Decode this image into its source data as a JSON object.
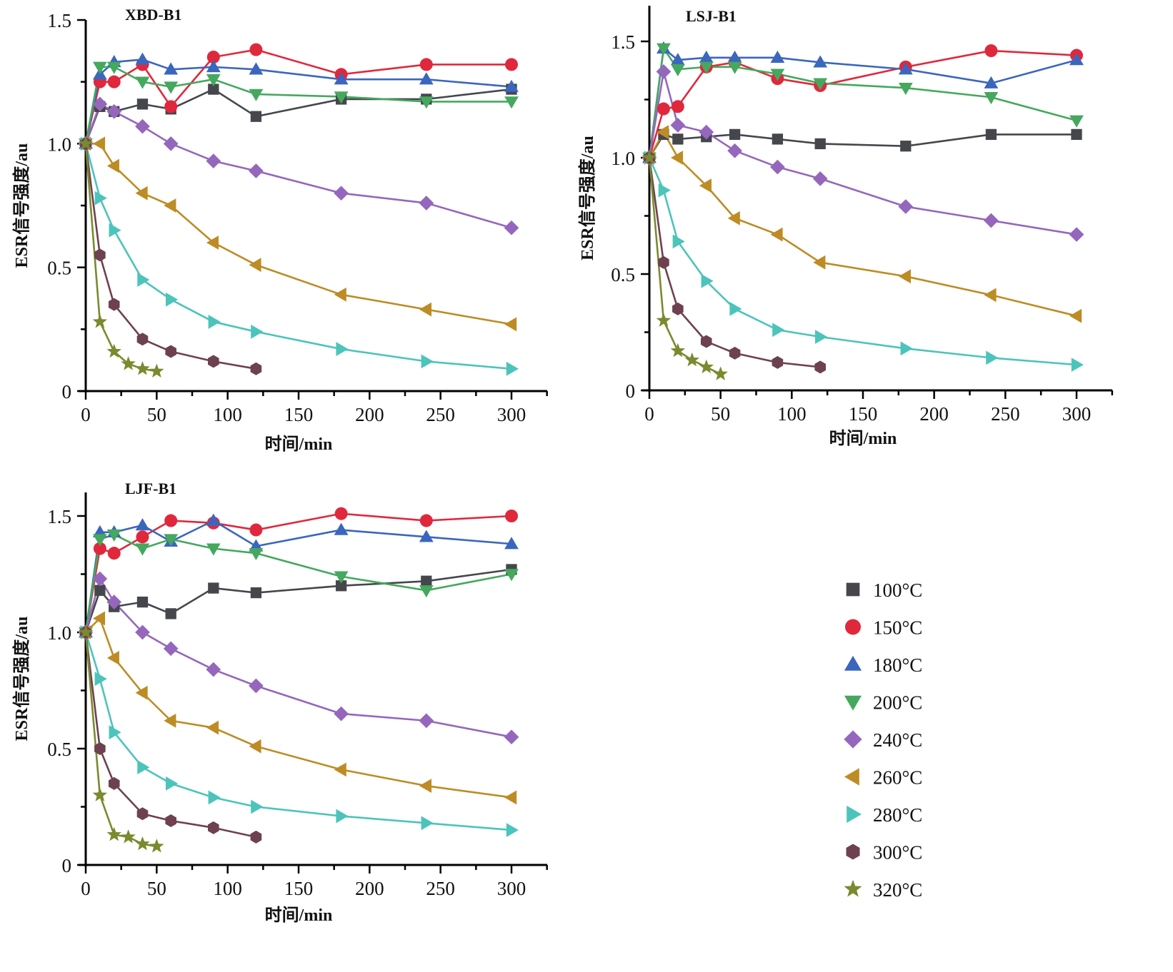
{
  "chart_data": [
    {
      "type": "line",
      "title": "XBD-B1",
      "xlabel": "时间/min",
      "ylabel": "ESR信号强度/au",
      "xlim": [
        0,
        325
      ],
      "ylim": [
        0,
        1.5
      ],
      "xticks": [
        0,
        50,
        100,
        150,
        200,
        250,
        300
      ],
      "xtick_labels": [
        "0",
        "50",
        "100",
        "150",
        "200",
        "250",
        "300"
      ],
      "yticks": [
        0,
        0.5,
        1.0,
        1.5
      ],
      "ytick_labels": [
        "0",
        "0.5",
        "1.0",
        "1.5"
      ],
      "grid": false,
      "series": [
        {
          "name": "100°C",
          "x": [
            0,
            10,
            20,
            40,
            60,
            90,
            120,
            180,
            240,
            300
          ],
          "y": [
            1.0,
            1.15,
            1.13,
            1.16,
            1.14,
            1.22,
            1.11,
            1.18,
            1.18,
            1.22
          ]
        },
        {
          "name": "150°C",
          "x": [
            0,
            10,
            20,
            40,
            60,
            90,
            120,
            180,
            240,
            300
          ],
          "y": [
            1.0,
            1.25,
            1.25,
            1.32,
            1.15,
            1.35,
            1.38,
            1.28,
            1.32,
            1.32
          ]
        },
        {
          "name": "180°C",
          "x": [
            0,
            10,
            20,
            40,
            60,
            90,
            120,
            180,
            240,
            300
          ],
          "y": [
            1.0,
            1.28,
            1.33,
            1.34,
            1.3,
            1.31,
            1.3,
            1.26,
            1.26,
            1.23
          ]
        },
        {
          "name": "200°C",
          "x": [
            0,
            10,
            20,
            40,
            60,
            90,
            120,
            180,
            240,
            300
          ],
          "y": [
            1.0,
            1.31,
            1.31,
            1.25,
            1.23,
            1.26,
            1.2,
            1.19,
            1.17,
            1.17
          ]
        },
        {
          "name": "240°C",
          "x": [
            0,
            10,
            20,
            40,
            60,
            90,
            120,
            180,
            240,
            300
          ],
          "y": [
            1.0,
            1.16,
            1.13,
            1.07,
            1.0,
            0.93,
            0.89,
            0.8,
            0.76,
            0.66
          ]
        },
        {
          "name": "260°C",
          "x": [
            0,
            10,
            20,
            40,
            60,
            90,
            120,
            180,
            240,
            300
          ],
          "y": [
            1.0,
            1.0,
            0.91,
            0.8,
            0.75,
            0.6,
            0.51,
            0.39,
            0.33,
            0.27
          ]
        },
        {
          "name": "280°C",
          "x": [
            0,
            10,
            20,
            40,
            60,
            90,
            120,
            180,
            240,
            300
          ],
          "y": [
            1.0,
            0.78,
            0.65,
            0.45,
            0.37,
            0.28,
            0.24,
            0.17,
            0.12,
            0.09
          ]
        },
        {
          "name": "300°C",
          "x": [
            0,
            10,
            20,
            40,
            60,
            90,
            120
          ],
          "y": [
            1.0,
            0.55,
            0.35,
            0.21,
            0.16,
            0.12,
            0.09
          ]
        },
        {
          "name": "320°C",
          "x": [
            0,
            10,
            20,
            30,
            40,
            50
          ],
          "y": [
            1.0,
            0.28,
            0.16,
            0.11,
            0.09,
            0.08
          ]
        }
      ]
    },
    {
      "type": "line",
      "title": "LSJ-B1",
      "xlabel": "时间/min",
      "ylabel": "ESR信号强度/au",
      "xlim": [
        0,
        325
      ],
      "ylim": [
        0,
        1.6
      ],
      "xticks": [
        0,
        50,
        100,
        150,
        200,
        250,
        300
      ],
      "xtick_labels": [
        "0",
        "50",
        "100",
        "150",
        "200",
        "250",
        "300"
      ],
      "yticks": [
        0,
        0.5,
        1.0,
        1.5
      ],
      "ytick_labels": [
        "0",
        "0.5",
        "1.0",
        "1.5"
      ],
      "grid": false,
      "series": [
        {
          "name": "100°C",
          "x": [
            0,
            10,
            20,
            40,
            60,
            90,
            120,
            180,
            240,
            300
          ],
          "y": [
            1.0,
            1.1,
            1.08,
            1.09,
            1.1,
            1.08,
            1.06,
            1.05,
            1.1,
            1.1
          ]
        },
        {
          "name": "150°C",
          "x": [
            0,
            10,
            20,
            40,
            60,
            90,
            120,
            180,
            240,
            300
          ],
          "y": [
            1.0,
            1.21,
            1.22,
            1.39,
            1.41,
            1.34,
            1.31,
            1.39,
            1.46,
            1.44
          ]
        },
        {
          "name": "180°C",
          "x": [
            0,
            10,
            20,
            40,
            60,
            90,
            120,
            180,
            240,
            300
          ],
          "y": [
            1.0,
            1.47,
            1.42,
            1.43,
            1.43,
            1.43,
            1.41,
            1.38,
            1.32,
            1.42
          ]
        },
        {
          "name": "200°C",
          "x": [
            0,
            10,
            20,
            40,
            60,
            90,
            120,
            180,
            240,
            300
          ],
          "y": [
            1.0,
            1.47,
            1.38,
            1.39,
            1.39,
            1.36,
            1.32,
            1.3,
            1.26,
            1.16
          ]
        },
        {
          "name": "240°C",
          "x": [
            0,
            10,
            20,
            40,
            60,
            90,
            120,
            180,
            240,
            300
          ],
          "y": [
            1.0,
            1.37,
            1.14,
            1.11,
            1.03,
            0.96,
            0.91,
            0.79,
            0.73,
            0.67
          ]
        },
        {
          "name": "260°C",
          "x": [
            0,
            10,
            20,
            40,
            60,
            90,
            120,
            180,
            240,
            300
          ],
          "y": [
            1.0,
            1.11,
            1.0,
            0.88,
            0.74,
            0.67,
            0.55,
            0.49,
            0.41,
            0.32
          ]
        },
        {
          "name": "280°C",
          "x": [
            0,
            10,
            20,
            40,
            60,
            90,
            120,
            180,
            240,
            300
          ],
          "y": [
            1.0,
            0.86,
            0.64,
            0.47,
            0.35,
            0.26,
            0.23,
            0.18,
            0.14,
            0.11
          ]
        },
        {
          "name": "300°C",
          "x": [
            0,
            10,
            20,
            40,
            60,
            90,
            120
          ],
          "y": [
            1.0,
            0.55,
            0.35,
            0.21,
            0.16,
            0.12,
            0.1
          ]
        },
        {
          "name": "320°C",
          "x": [
            0,
            10,
            20,
            30,
            40,
            50
          ],
          "y": [
            1.0,
            0.3,
            0.17,
            0.13,
            0.1,
            0.07
          ]
        }
      ]
    },
    {
      "type": "line",
      "title": "LJF-B1",
      "xlabel": "时间/min",
      "ylabel": "ESR信号强度/au",
      "xlim": [
        0,
        325
      ],
      "ylim": [
        0,
        1.6
      ],
      "xticks": [
        0,
        50,
        100,
        150,
        200,
        250,
        300
      ],
      "xtick_labels": [
        "0",
        "50",
        "100",
        "150",
        "200",
        "250",
        "300"
      ],
      "yticks": [
        0,
        0.5,
        1.0,
        1.5
      ],
      "ytick_labels": [
        "0",
        "0.5",
        "1.0",
        "1.5"
      ],
      "grid": false,
      "series": [
        {
          "name": "100°C",
          "x": [
            0,
            10,
            20,
            40,
            60,
            90,
            120,
            180,
            240,
            300
          ],
          "y": [
            1.0,
            1.18,
            1.11,
            1.13,
            1.08,
            1.19,
            1.17,
            1.2,
            1.22,
            1.27
          ]
        },
        {
          "name": "150°C",
          "x": [
            0,
            10,
            20,
            40,
            60,
            90,
            120,
            180,
            240,
            300
          ],
          "y": [
            1.0,
            1.36,
            1.34,
            1.41,
            1.48,
            1.47,
            1.44,
            1.51,
            1.48,
            1.5
          ]
        },
        {
          "name": "180°C",
          "x": [
            0,
            10,
            20,
            40,
            60,
            90,
            120,
            180,
            240,
            300
          ],
          "y": [
            1.0,
            1.43,
            1.43,
            1.46,
            1.39,
            1.48,
            1.37,
            1.44,
            1.41,
            1.38
          ]
        },
        {
          "name": "200°C",
          "x": [
            0,
            10,
            20,
            40,
            60,
            90,
            120,
            180,
            240,
            300
          ],
          "y": [
            1.0,
            1.4,
            1.42,
            1.36,
            1.4,
            1.36,
            1.34,
            1.24,
            1.18,
            1.25
          ]
        },
        {
          "name": "240°C",
          "x": [
            0,
            10,
            20,
            40,
            60,
            90,
            120,
            180,
            240,
            300
          ],
          "y": [
            1.0,
            1.23,
            1.13,
            1.0,
            0.93,
            0.84,
            0.77,
            0.65,
            0.62,
            0.55
          ]
        },
        {
          "name": "260°C",
          "x": [
            0,
            10,
            20,
            40,
            60,
            90,
            120,
            180,
            240,
            300
          ],
          "y": [
            1.0,
            1.06,
            0.89,
            0.74,
            0.62,
            0.59,
            0.51,
            0.41,
            0.34,
            0.29
          ]
        },
        {
          "name": "280°C",
          "x": [
            0,
            10,
            20,
            40,
            60,
            90,
            120,
            180,
            240,
            300
          ],
          "y": [
            1.0,
            0.8,
            0.57,
            0.42,
            0.35,
            0.29,
            0.25,
            0.21,
            0.18,
            0.15
          ]
        },
        {
          "name": "300°C",
          "x": [
            0,
            10,
            20,
            40,
            60,
            90,
            120
          ],
          "y": [
            1.0,
            0.5,
            0.35,
            0.22,
            0.19,
            0.16,
            0.12
          ]
        },
        {
          "name": "320°C",
          "x": [
            0,
            10,
            20,
            30,
            40,
            50
          ],
          "y": [
            1.0,
            0.3,
            0.13,
            0.12,
            0.09,
            0.08
          ]
        }
      ]
    }
  ],
  "legend": {
    "placement": "right of bottom-left panel",
    "entries": [
      {
        "label": "100°C",
        "marker": "square",
        "color": "#45474c"
      },
      {
        "label": "150°C",
        "marker": "circle",
        "color": "#e0283c"
      },
      {
        "label": "180°C",
        "marker": "triangle-up",
        "color": "#3b66be"
      },
      {
        "label": "200°C",
        "marker": "triangle-down",
        "color": "#45a85e"
      },
      {
        "label": "240°C",
        "marker": "diamond",
        "color": "#9467bd"
      },
      {
        "label": "260°C",
        "marker": "triangle-left",
        "color": "#bd8c24"
      },
      {
        "label": "280°C",
        "marker": "triangle-right",
        "color": "#4cc4bb"
      },
      {
        "label": "300°C",
        "marker": "hexagon",
        "color": "#6e4150"
      },
      {
        "label": "320°C",
        "marker": "star",
        "color": "#7a8a2e"
      }
    ]
  }
}
